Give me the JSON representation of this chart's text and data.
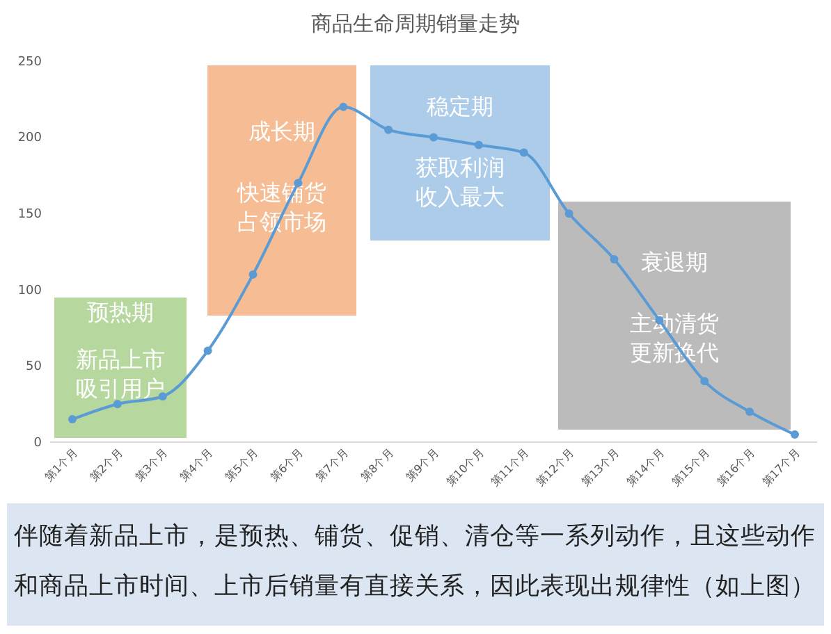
{
  "chart_data": {
    "type": "line",
    "title": "商品生命周期销量走势",
    "categories": [
      "第1个月",
      "第2个月",
      "第3个月",
      "第4个月",
      "第5个月",
      "第6个月",
      "第7个月",
      "第8个月",
      "第9个月",
      "第10个月",
      "第11个月",
      "第12个月",
      "第13个月",
      "第14个月",
      "第15个月",
      "第16个月",
      "第17个月"
    ],
    "series": [
      {
        "color": "#5b9bd5",
        "values": [
          15,
          25,
          30,
          60,
          110,
          170,
          220,
          205,
          200,
          195,
          190,
          150,
          120,
          80,
          40,
          20,
          5
        ]
      }
    ],
    "ylim": [
      0,
      250
    ],
    "yticks": [
      0,
      50,
      100,
      150,
      200,
      250
    ],
    "grid": false,
    "marker": "circle",
    "line_style": "solid",
    "annotations": [
      "预热期",
      "新品上市吸引用户",
      "成长期",
      "快速铺货占领市场",
      "稳定期",
      "获取利润收入最大",
      "衰退期",
      "主动清货更新换代",
      "伴随着新品上市，是预热、铺货、促销、清仓等一系列动作，且这些动作和商品上市时间、上市后销量有直接关系，因此表现出规律性（如上图）"
    ]
  }
}
